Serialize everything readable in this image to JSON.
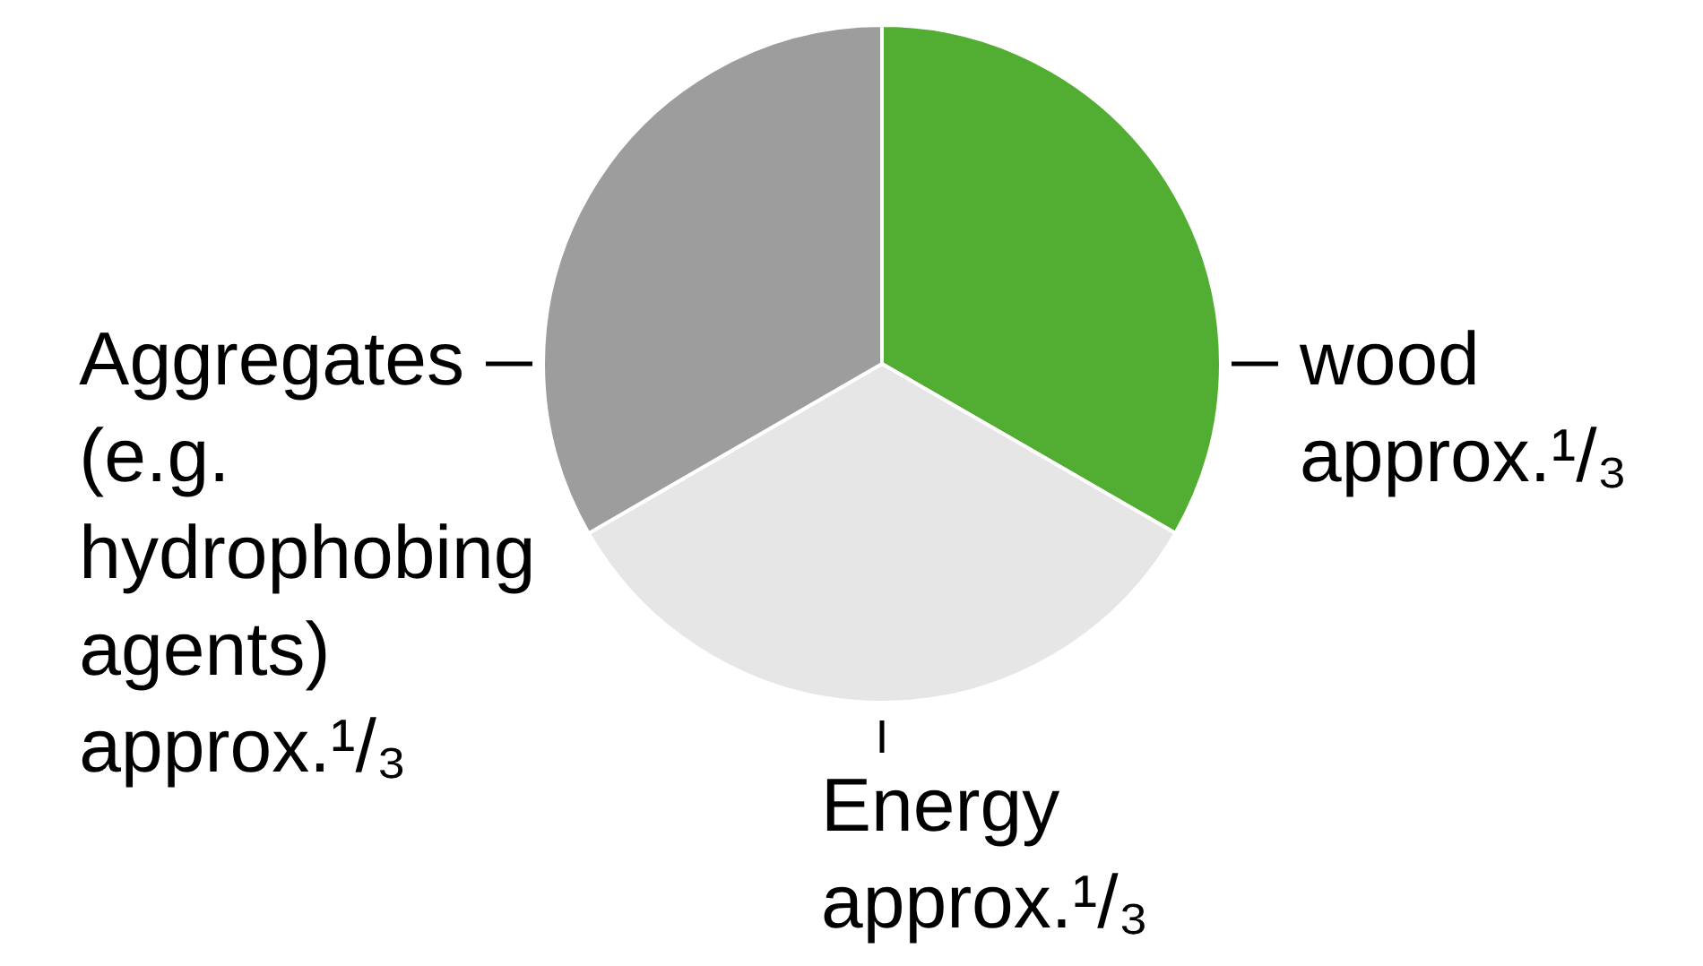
{
  "chart_data": {
    "type": "pie",
    "categories": [
      "wood",
      "Energy",
      "Aggregates (e.g. hydrophobing agents)"
    ],
    "values": [
      33.33,
      33.33,
      33.34
    ],
    "colors": [
      "#52ae32",
      "#e6e6e6",
      "#9d9d9d"
    ],
    "value_labels": [
      "approx.¹/₃",
      "approx.¹/₃",
      "approx.¹/₃"
    ],
    "legend": false
  }
}
